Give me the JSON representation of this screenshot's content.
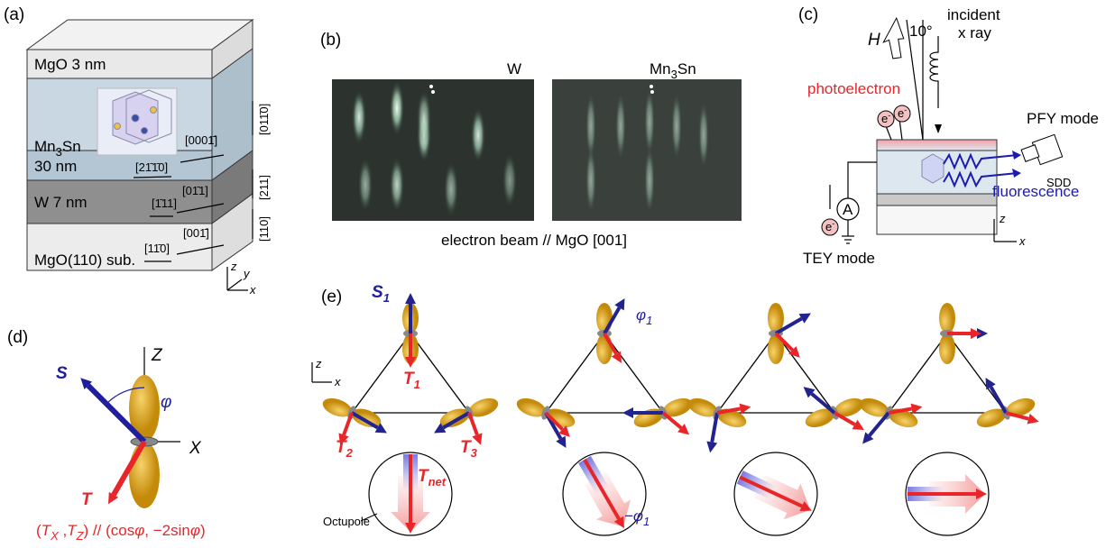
{
  "panel_a": {
    "label": "(a)",
    "mgo_cap": "MgO 3 nm",
    "mn3sn": {
      "a": "Mn",
      "sub": "3",
      "b": "Sn"
    },
    "mn3sn_thickness": "30 nm",
    "w": "W 7 nm",
    "substrate": "MgO(110) sub.",
    "directions": [
      "[0001̄]",
      "[21̄1̄0]",
      "[01̄1]",
      "[1̄11]",
      "[001̄]",
      "[11̄0]"
    ],
    "side_directions": [
      "[011̄0]",
      "[211]",
      "[110]"
    ],
    "axes": [
      "z",
      "y",
      "x"
    ]
  },
  "panel_b": {
    "label": "(b)",
    "left": "W",
    "right": {
      "a": "Mn",
      "sub": "3",
      "b": "Sn"
    },
    "caption": "electron beam // MgO [001]"
  },
  "panel_c": {
    "label": "(c)",
    "field": "H",
    "angle": "10°",
    "incident": [
      "incident",
      "x ray"
    ],
    "photoelectron": "photoelectron",
    "pfy": "PFY mode",
    "sdd": "SDD",
    "fluorescence": "fluorescence",
    "tey": "TEY mode",
    "ammeter": "A",
    "electron": {
      "a": "e",
      "sup": "-"
    },
    "axes": [
      "z",
      "x"
    ]
  },
  "panel_d": {
    "label": "(d)",
    "axes": [
      "Z",
      "X"
    ],
    "S": "S",
    "T": "T",
    "phi": "φ",
    "relation": [
      "(",
      "T",
      "X",
      " ,",
      "T",
      "Z",
      ") // (cos",
      "φ",
      ", −2sin",
      "φ",
      ")"
    ]
  },
  "panel_e": {
    "label": "(e)",
    "S1": {
      "a": "S",
      "sub": "1"
    },
    "T1": {
      "a": "T",
      "sub": "1"
    },
    "T2": {
      "a": "T",
      "sub": "2"
    },
    "T3": {
      "a": "T",
      "sub": "3"
    },
    "Tnet": {
      "a": "T",
      "sub": "net"
    },
    "octupole": "Octupole",
    "phi1": {
      "a": "φ",
      "sub": "1"
    },
    "minus_phi1": {
      "a": "−φ",
      "sub": "1"
    },
    "axes": [
      "z",
      "x"
    ]
  }
}
